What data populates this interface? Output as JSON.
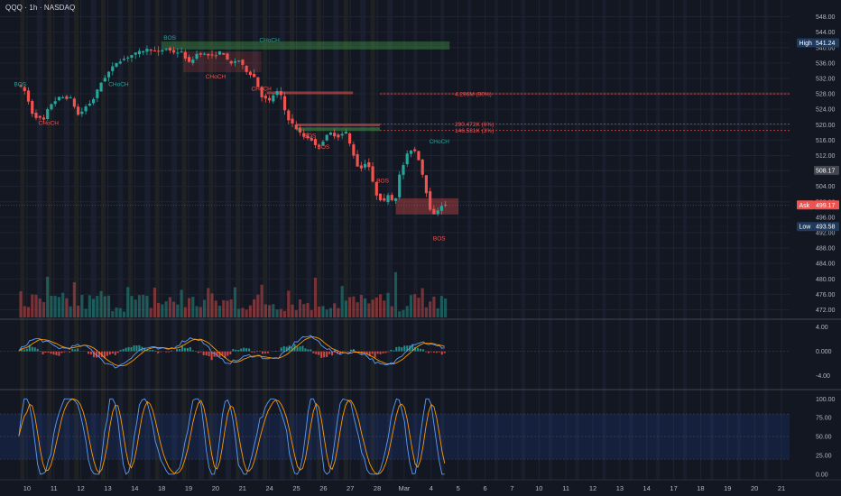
{
  "header": {
    "symbol_title": "QQQ · 1h · NASDAQ"
  },
  "colors": {
    "background": "#131722",
    "up": "#26a69a",
    "down": "#ef5350",
    "grid": "#1f2330",
    "text": "#b2b5be",
    "demand_zone": "#4caf50",
    "supply_zone": "#ef5350",
    "macd_line": "#5b9cf6",
    "signal_line": "#ff9800",
    "stoch_k": "#5b9cf6",
    "stoch_d": "#ff9800",
    "high_tag": "#1e3a5f",
    "low_tag": "#1e3a5f",
    "ask_tag": "#ef5350"
  },
  "chart_data": [
    {
      "type": "candlestick",
      "title": "QQQ · 1h · NASDAQ",
      "y_ticks": [
        "548.00",
        "544.00",
        "540.00",
        "536.00",
        "532.00",
        "528.00",
        "524.00",
        "520.00",
        "516.00",
        "512.00",
        "508.00",
        "504.00",
        "500.00",
        "496.00",
        "492.00",
        "488.00",
        "484.00",
        "480.00",
        "476.00",
        "472.00"
      ],
      "ylim": [
        470,
        550
      ],
      "x_tick_labels": [
        "10",
        "11",
        "12",
        "13",
        "14",
        "18",
        "19",
        "20",
        "21",
        "24",
        "25",
        "26",
        "27",
        "28",
        "Mar",
        "4",
        "5",
        "6",
        "7",
        "10",
        "11",
        "12",
        "13",
        "14",
        "17",
        "18",
        "19",
        "20",
        "21"
      ],
      "x_tick_times": [
        0.3,
        1.3,
        2.3,
        3.3,
        4.3,
        5.3,
        6.3,
        7.3,
        8.3,
        9.3,
        10.3,
        11.3,
        12.3,
        13.3,
        14.3,
        15.3,
        16.3,
        17.3,
        18.3,
        19.3,
        20.3,
        21.3,
        22.3,
        23.3,
        24.3,
        25.3,
        26.3,
        27.3,
        28.3
      ],
      "price_path": [
        [
          0.0,
          530.5
        ],
        [
          0.3,
          528.6
        ],
        [
          0.6,
          522.3
        ],
        [
          1.0,
          521.2
        ],
        [
          1.2,
          525.0
        ],
        [
          1.6,
          527.2
        ],
        [
          2.0,
          526.8
        ],
        [
          2.3,
          522.1
        ],
        [
          2.5,
          524.4
        ],
        [
          2.8,
          526.1
        ],
        [
          3.1,
          530.7
        ],
        [
          3.4,
          533.6
        ],
        [
          3.7,
          536.2
        ],
        [
          4.0,
          537.2
        ],
        [
          4.3,
          538.2
        ],
        [
          4.6,
          539.0
        ],
        [
          4.9,
          539.7
        ],
        [
          5.2,
          538.6
        ],
        [
          5.5,
          539.8
        ],
        [
          5.8,
          538.8
        ],
        [
          6.1,
          538.8
        ],
        [
          6.4,
          535.9
        ],
        [
          6.7,
          538.6
        ],
        [
          7.0,
          538.2
        ],
        [
          7.3,
          537.6
        ],
        [
          7.6,
          539.2
        ],
        [
          7.9,
          535.5
        ],
        [
          8.2,
          537.0
        ],
        [
          8.5,
          534.0
        ],
        [
          8.8,
          532.4
        ],
        [
          9.1,
          527.1
        ],
        [
          9.4,
          526.0
        ],
        [
          9.6,
          529.0
        ],
        [
          9.8,
          527.4
        ],
        [
          10.0,
          522.1
        ],
        [
          10.3,
          519.5
        ],
        [
          10.6,
          517.0
        ],
        [
          10.9,
          516.4
        ],
        [
          11.1,
          514.2
        ],
        [
          11.3,
          515.3
        ],
        [
          11.6,
          518.0
        ],
        [
          11.9,
          516.8
        ],
        [
          12.2,
          518.2
        ],
        [
          12.4,
          514.0
        ],
        [
          12.7,
          508.0
        ],
        [
          13.0,
          510.8
        ],
        [
          13.3,
          502.2
        ],
        [
          13.6,
          499.7
        ],
        [
          13.8,
          502.4
        ],
        [
          14.0,
          499.0
        ],
        [
          14.2,
          507.0
        ],
        [
          14.5,
          512.6
        ],
        [
          14.7,
          514.1
        ],
        [
          14.9,
          511.2
        ],
        [
          15.1,
          505.7
        ],
        [
          15.3,
          498.6
        ],
        [
          15.5,
          496.2
        ],
        [
          15.7,
          499.2
        ],
        [
          15.9,
          499.0
        ]
      ],
      "volume": "shown as bars along the bottom of the price pane",
      "indicators": [
        {
          "name": "MACD",
          "y_ticks": [
            "4.00",
            "0.000",
            "-4.00"
          ],
          "ylim": [
            -6,
            5
          ]
        },
        {
          "name": "Stochastic RSI",
          "y_ticks": [
            "100.00",
            "75.00",
            "50.00",
            "25.00",
            "0.00"
          ],
          "ylim": [
            -5,
            110
          ],
          "band": [
            20,
            80
          ]
        }
      ],
      "price_tags": [
        {
          "side_label": "High",
          "value": "541.24",
          "price": 541.24
        },
        {
          "side_label": "",
          "value": "508.17",
          "price": 508.17
        },
        {
          "side_label": "Ask",
          "value": "499.17",
          "price": 499.17
        },
        {
          "side_label": "Low",
          "value": "493.58",
          "price": 493.58
        }
      ],
      "levels": [
        {
          "label": "4.296M (90%)",
          "price": 528.0
        },
        {
          "label": "290.472K (6%)",
          "price": 520.2
        },
        {
          "label": "146.581K (3%)",
          "price": 518.5
        }
      ],
      "annotations": [
        {
          "text": "BOS",
          "time": 0.05,
          "price": 530.0,
          "color": "up"
        },
        {
          "text": "CHoCH",
          "time": 1.1,
          "price": 520.0,
          "color": "down"
        },
        {
          "text": "CHoCH",
          "time": 3.7,
          "price": 530.0,
          "color": "up"
        },
        {
          "text": "BOS",
          "time": 5.6,
          "price": 542.0,
          "color": "up"
        },
        {
          "text": "CHoCH",
          "time": 9.3,
          "price": 541.5,
          "color": "up"
        },
        {
          "text": "CHoCH",
          "time": 7.3,
          "price": 532.0,
          "color": "down"
        },
        {
          "text": "CHoCH",
          "time": 9.0,
          "price": 528.8,
          "color": "down"
        },
        {
          "text": "BOS",
          "time": 10.8,
          "price": 516.7,
          "color": "down"
        },
        {
          "text": "BOS",
          "time": 11.3,
          "price": 513.7,
          "color": "down"
        },
        {
          "text": "BOS",
          "time": 13.5,
          "price": 505.0,
          "color": "down"
        },
        {
          "text": "CHoCH",
          "time": 15.6,
          "price": 515.2,
          "color": "up"
        },
        {
          "text": "BOS",
          "time": 15.6,
          "price": 490.0,
          "color": "down"
        }
      ]
    }
  ]
}
